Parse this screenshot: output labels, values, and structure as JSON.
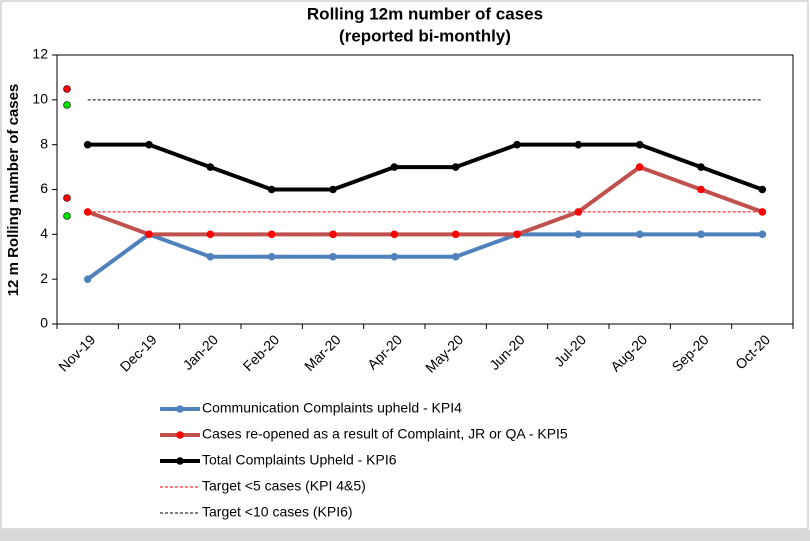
{
  "chart_data": {
    "type": "line",
    "title": "Rolling 12m number of cases",
    "subtitle": "(reported bi-monthly)",
    "y_label": "12 m Rolling number of cases",
    "categories": [
      "Nov-19",
      "Dec-19",
      "Jan-20",
      "Feb-20",
      "Mar-20",
      "Apr-20",
      "May-20",
      "Jun-20",
      "Jul-20",
      "Aug-20",
      "Sep-20",
      "Oct-20"
    ],
    "series": [
      {
        "name": "Communication Complaints upheld - KPI4",
        "color": "#4f81bd",
        "marker": "#4f81bd",
        "values": [
          2,
          4,
          3,
          3,
          3,
          3,
          3,
          4,
          4,
          4,
          4,
          4
        ]
      },
      {
        "name": "Cases re-opened as a result of Complaint, JR or QA - KPI5",
        "color": "#c0504d",
        "marker": "#ff0000",
        "values": [
          5,
          4,
          4,
          4,
          4,
          4,
          4,
          4,
          5,
          7,
          6,
          5
        ]
      },
      {
        "name": "Total Complaints Upheld - KPI6",
        "color": "#000000",
        "marker": "#000000",
        "values": [
          8,
          8,
          7,
          6,
          6,
          7,
          7,
          8,
          8,
          8,
          7,
          6
        ]
      }
    ],
    "targets": [
      {
        "name": "Target <5 cases (KPI 4&5)",
        "color": "#ff0000",
        "value": 5
      },
      {
        "name": "Target <10 cases (KPI6)",
        "color": "#000000",
        "value": 10
      }
    ],
    "ylim": [
      0,
      12
    ],
    "yticks": [
      0,
      2,
      4,
      6,
      8,
      10,
      12
    ],
    "legend": "bottom"
  }
}
